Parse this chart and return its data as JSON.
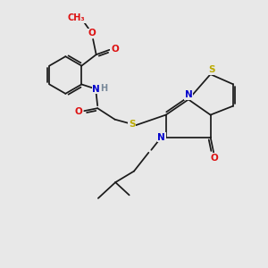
{
  "bg": "#e8e8e8",
  "bc": "#1a1a1a",
  "O": "#dd1111",
  "N": "#0000cc",
  "S": "#bbaa00",
  "H_color": "#778899",
  "fs": 7.5,
  "lw": 1.25
}
